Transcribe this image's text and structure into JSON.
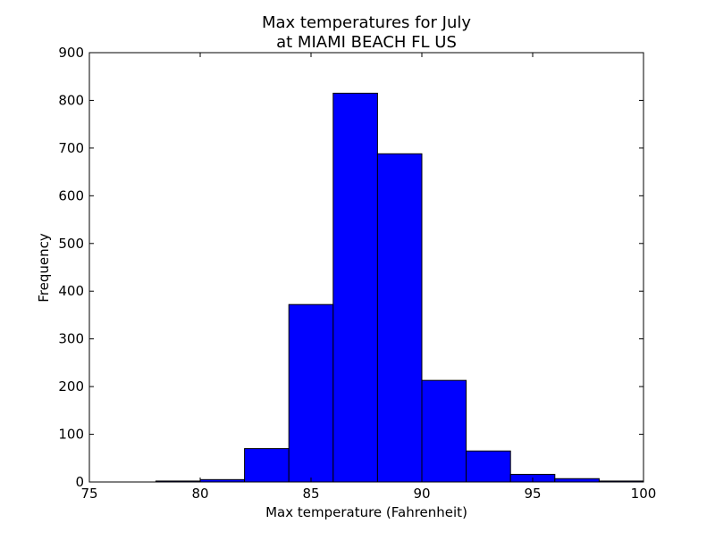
{
  "chart_data": {
    "type": "bar",
    "title_line1": "Max temperatures for July",
    "title_line2": "at MIAMI BEACH FL US",
    "xlabel": "Max temperature (Fahrenheit)",
    "ylabel": "Frequency",
    "xlim": [
      75,
      100
    ],
    "ylim": [
      0,
      900
    ],
    "xticks": [
      "75",
      "80",
      "85",
      "90",
      "95",
      "100"
    ],
    "yticks": [
      "0",
      "100",
      "200",
      "300",
      "400",
      "500",
      "600",
      "700",
      "800",
      "900"
    ],
    "bins": [
      {
        "x0": 78,
        "x1": 80,
        "value": 2
      },
      {
        "x0": 80,
        "x1": 82,
        "value": 5
      },
      {
        "x0": 82,
        "x1": 84,
        "value": 70
      },
      {
        "x0": 84,
        "x1": 86,
        "value": 372
      },
      {
        "x0": 86,
        "x1": 88,
        "value": 815
      },
      {
        "x0": 88,
        "x1": 90,
        "value": 688
      },
      {
        "x0": 90,
        "x1": 92,
        "value": 213
      },
      {
        "x0": 92,
        "x1": 94,
        "value": 65
      },
      {
        "x0": 94,
        "x1": 96,
        "value": 16
      },
      {
        "x0": 96,
        "x1": 98,
        "value": 7
      },
      {
        "x0": 98,
        "x1": 100,
        "value": 2
      }
    ],
    "bar_color": "#0000ff",
    "edge_color": "#000000",
    "grid": false,
    "legend": false
  }
}
